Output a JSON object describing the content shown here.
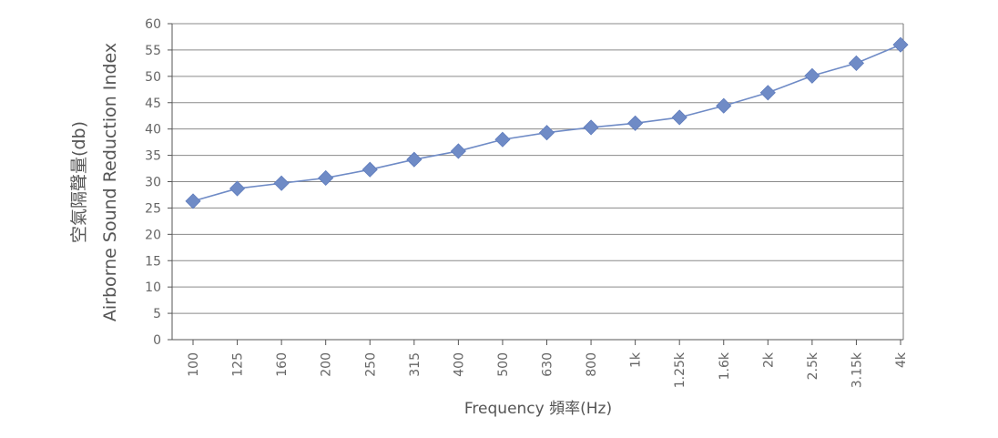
{
  "chart_data": {
    "type": "line",
    "title": "",
    "xlabel": "Frequency 頻率(Hz)",
    "ylabel_lines": [
      "空氣隔聲量(db)",
      "Airborne Sound Reduction Index"
    ],
    "ylim": [
      0,
      60
    ],
    "yticks": [
      0,
      5,
      10,
      15,
      20,
      25,
      30,
      35,
      40,
      45,
      50,
      55,
      60
    ],
    "grid": true,
    "legend": "none",
    "categories": [
      "100",
      "125",
      "160",
      "200",
      "250",
      "315",
      "400",
      "500",
      "630",
      "800",
      "1k",
      "1.25k",
      "1.6k",
      "2k",
      "2.5k",
      "3.15k",
      "4k"
    ],
    "series": [
      {
        "values": [
          26.3,
          28.7,
          29.7,
          30.7,
          32.3,
          34.2,
          35.8,
          38.0,
          39.3,
          40.3,
          41.1,
          42.2,
          44.4,
          46.9,
          50.1,
          52.5,
          56.0
        ],
        "color": "#6f8bc6",
        "marker": "diamond"
      }
    ]
  }
}
